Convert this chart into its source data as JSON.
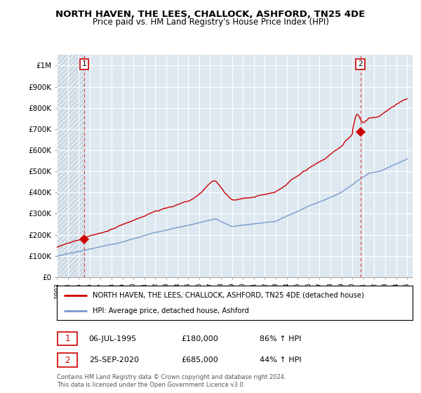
{
  "title": "NORTH HAVEN, THE LEES, CHALLOCK, ASHFORD, TN25 4DE",
  "subtitle": "Price paid vs. HM Land Registry's House Price Index (HPI)",
  "legend_label_red": "NORTH HAVEN, THE LEES, CHALLOCK, ASHFORD, TN25 4DE (detached house)",
  "legend_label_blue": "HPI: Average price, detached house, Ashford",
  "annotation1_date": "06-JUL-1995",
  "annotation1_price": "£180,000",
  "annotation1_hpi": "86% ↑ HPI",
  "annotation2_date": "25-SEP-2020",
  "annotation2_price": "£685,000",
  "annotation2_hpi": "44% ↑ HPI",
  "footer": "Contains HM Land Registry data © Crown copyright and database right 2024.\nThis data is licensed under the Open Government Licence v3.0.",
  "red_color": "#cc0000",
  "blue_color": "#7799cc",
  "dashed_color": "#dd4444",
  "bg_color": "#dde8f0",
  "hatch_color": "#c0ccd8",
  "grid_color": "#ffffff",
  "ylim": [
    0,
    1050000
  ],
  "yticks": [
    0,
    100000,
    200000,
    300000,
    400000,
    500000,
    600000,
    700000,
    800000,
    900000,
    1000000
  ],
  "ytick_labels": [
    "£0",
    "£100K",
    "£200K",
    "£300K",
    "£400K",
    "£500K",
    "£600K",
    "£700K",
    "£800K",
    "£900K",
    "£1M"
  ],
  "xlim_start": 1993.0,
  "xlim_end": 2025.5,
  "sale1_year": 1995.51,
  "sale1_value": 180000,
  "sale2_year": 2020.73,
  "sale2_value": 685000
}
